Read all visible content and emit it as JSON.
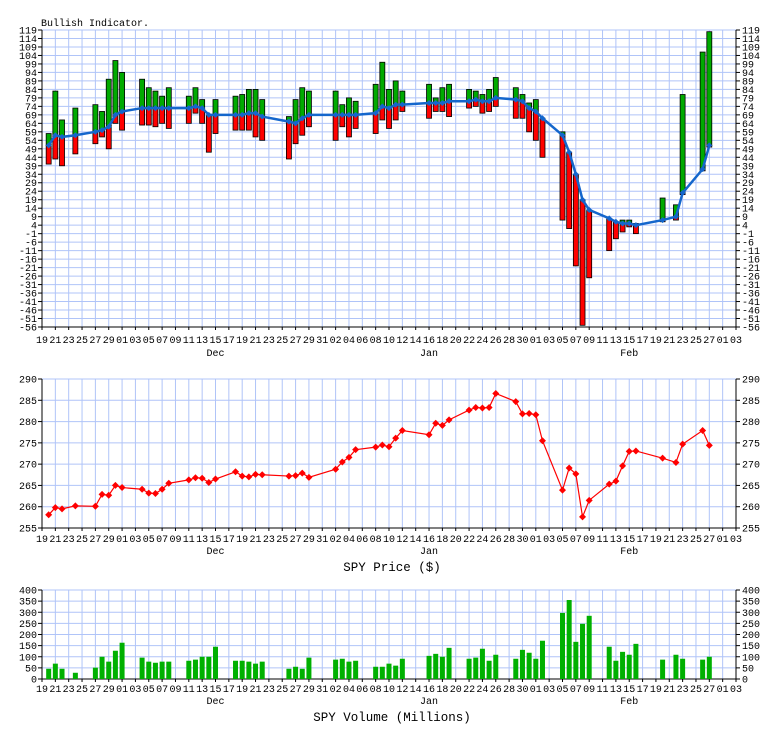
{
  "axis": {
    "x_tick_labels": [
      "19",
      "21",
      "23",
      "25",
      "27",
      "29",
      "01",
      "03",
      "05",
      "07",
      "09",
      "11",
      "13",
      "15",
      "17",
      "19",
      "21",
      "23",
      "25",
      "27",
      "29",
      "31",
      "02",
      "04",
      "06",
      "08",
      "10",
      "12",
      "14",
      "16",
      "18",
      "20",
      "22",
      "24",
      "26",
      "28",
      "30",
      "01",
      "03",
      "05",
      "07",
      "09",
      "11",
      "13",
      "15",
      "17",
      "19",
      "21",
      "23",
      "25",
      "27",
      "01",
      "03"
    ],
    "months": [
      "Dec",
      "Jan",
      "Feb"
    ]
  },
  "colors": {
    "grid": "#b0c4f8",
    "up": "#00aa00",
    "down": "#ff0000",
    "ma_line": "#1466cc",
    "price": "#ff0000",
    "volume": "#00b000"
  },
  "chart_data": [
    {
      "type": "bar",
      "title": "Bullish Indicator.",
      "ylim": [
        -56,
        119
      ],
      "ytick_step": 5,
      "grid": true,
      "dates": [
        "11-20",
        "11-21",
        "11-22",
        "11-24",
        "11-27",
        "11-28",
        "11-29",
        "11-30",
        "12-01",
        "12-04",
        "12-05",
        "12-06",
        "12-07",
        "12-08",
        "12-11",
        "12-12",
        "12-13",
        "12-14",
        "12-15",
        "12-18",
        "12-19",
        "12-20",
        "12-21",
        "12-22",
        "12-26",
        "12-27",
        "12-28",
        "12-29",
        "01-02",
        "01-03",
        "01-04",
        "01-05",
        "01-08",
        "01-09",
        "01-10",
        "01-11",
        "01-12",
        "01-16",
        "01-17",
        "01-18",
        "01-19",
        "01-22",
        "01-23",
        "01-24",
        "01-25",
        "01-26",
        "01-29",
        "01-30",
        "01-31",
        "02-01",
        "02-02",
        "02-05",
        "02-06",
        "02-07",
        "02-08",
        "02-09",
        "02-12",
        "02-13",
        "02-14",
        "02-15",
        "02-16",
        "02-20",
        "02-22",
        "02-23",
        "02-26",
        "02-27"
      ],
      "high": [
        58,
        83,
        66,
        73,
        75,
        71,
        90,
        101,
        94,
        90,
        85,
        83,
        80,
        85,
        80,
        85,
        78,
        69,
        78,
        80,
        81,
        84,
        84,
        78,
        68,
        78,
        85,
        83,
        83,
        75,
        79,
        77,
        87,
        100,
        84,
        89,
        83,
        87,
        79,
        85,
        87,
        84,
        83,
        81,
        84,
        91,
        85,
        81,
        76,
        78,
        67,
        59,
        47,
        34,
        19,
        13,
        8,
        6,
        7,
        7,
        5,
        20,
        16,
        81,
        106,
        118
      ],
      "low": [
        40,
        43,
        39,
        46,
        52,
        56,
        49,
        64,
        60,
        63,
        63,
        62,
        64,
        61,
        64,
        70,
        64,
        47,
        58,
        60,
        60,
        60,
        56,
        54,
        43,
        52,
        57,
        62,
        54,
        62,
        56,
        61,
        58,
        66,
        61,
        66,
        71,
        67,
        71,
        71,
        68,
        73,
        74,
        70,
        71,
        74,
        67,
        67,
        59,
        54,
        44,
        7,
        2,
        -20,
        -55,
        -27,
        -11,
        -4,
        0,
        3,
        -1,
        6,
        7,
        22,
        36,
        50
      ],
      "ma": [
        51,
        57,
        56,
        57,
        59,
        60,
        62,
        69,
        71,
        73,
        73,
        73,
        73,
        73,
        73,
        74,
        73,
        69,
        69,
        69,
        69,
        70,
        70,
        68,
        65,
        64,
        67,
        69,
        69,
        69,
        69,
        69,
        70,
        74,
        73,
        75,
        75,
        76,
        76,
        76,
        77,
        77,
        78,
        77,
        77,
        79,
        78,
        77,
        73,
        71,
        67,
        57,
        47,
        34,
        19,
        13,
        8,
        6,
        5,
        5,
        4,
        7,
        9,
        23,
        37,
        51
      ]
    },
    {
      "type": "line",
      "xlabel": "SPY Price ($)",
      "ylim": [
        255,
        290
      ],
      "ytick_step": 5,
      "grid": true,
      "values": [
        258.1,
        259.8,
        259.5,
        260.2,
        260.1,
        262.9,
        262.7,
        265.0,
        264.5,
        264.1,
        263.2,
        263.1,
        264.1,
        265.5,
        266.3,
        266.8,
        266.7,
        265.7,
        266.5,
        268.2,
        267.2,
        267.0,
        267.6,
        267.5,
        267.2,
        267.3,
        267.9,
        266.9,
        268.8,
        270.5,
        271.6,
        273.4,
        274.0,
        274.5,
        274.1,
        276.1,
        277.9,
        276.9,
        279.6,
        279.1,
        280.4,
        282.7,
        283.3,
        283.2,
        283.3,
        286.6,
        284.7,
        281.8,
        281.9,
        281.6,
        275.5,
        263.9,
        269.1,
        267.7,
        257.6,
        261.5,
        265.3,
        266.0,
        269.6,
        273.0,
        273.1,
        271.4,
        270.4,
        274.7,
        277.9,
        274.4
      ]
    },
    {
      "type": "bar",
      "xlabel": "SPY Volume (Millions)",
      "ylim": [
        0,
        400
      ],
      "ytick_step": 50,
      "grid": true,
      "values": [
        46,
        69,
        46,
        28,
        51,
        100,
        78,
        127,
        163,
        96,
        78,
        73,
        78,
        78,
        82,
        87,
        100,
        100,
        145,
        82,
        82,
        78,
        69,
        78,
        46,
        55,
        46,
        96,
        87,
        91,
        78,
        82,
        55,
        55,
        69,
        60,
        91,
        104,
        113,
        100,
        140,
        91,
        96,
        136,
        82,
        109,
        91,
        131,
        118,
        91,
        172,
        297,
        355,
        167,
        248,
        284,
        145,
        82,
        122,
        109,
        158,
        87,
        109,
        91,
        87,
        100
      ]
    }
  ]
}
